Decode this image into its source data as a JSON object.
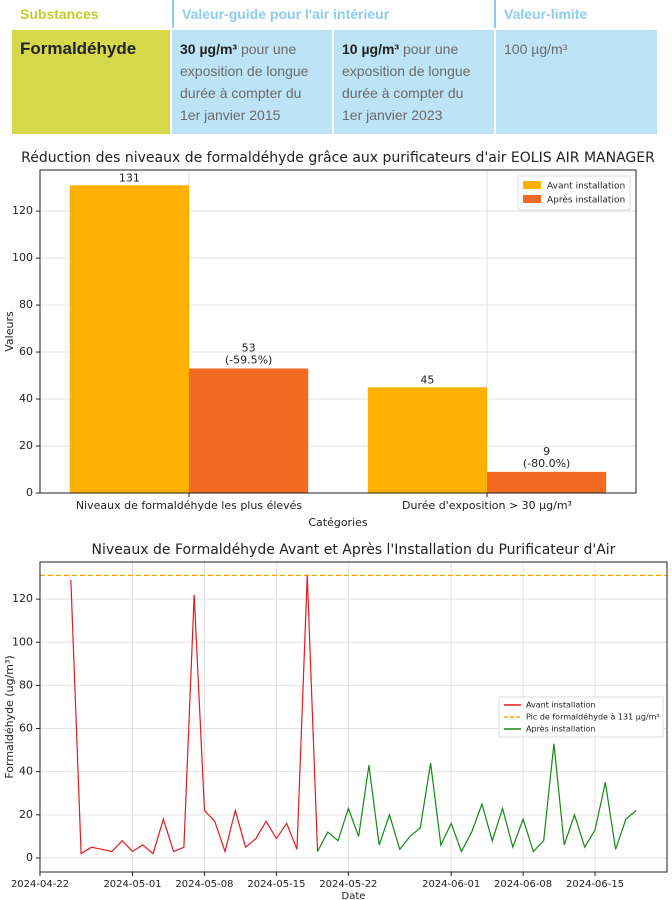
{
  "table": {
    "headers": [
      "Substances",
      "Valeur-guide pour l'air intérieur",
      "Valeur-limite"
    ],
    "row": {
      "substance": "Formaldéhyde",
      "guide": [
        {
          "bold": "30 µg/m³",
          "text": "pour une exposition de longue durée à compter du 1er janvier 2015"
        },
        {
          "bold": "10 µg/m³",
          "text": "pour une exposition de longue durée à compter du 1er janvier 2023"
        }
      ],
      "limit": "100 µg/m³"
    }
  },
  "chart_data": [
    {
      "type": "bar",
      "title": "Réduction des niveaux de formaldéhyde grâce aux purificateurs d'air EOLIS AIR MANAGER",
      "xlabel": "Catégories",
      "ylabel": "Valeurs",
      "categories": [
        "Niveaux de formaldéhyde les plus élevés",
        "Durée d'exposition > 30 µg/m³"
      ],
      "series": [
        {
          "name": "Avant installation",
          "color": "#ffb000",
          "values": [
            131,
            45
          ]
        },
        {
          "name": "Après installation",
          "color": "#f26b21",
          "values": [
            53,
            9
          ],
          "value_labels": [
            "53\n(-59.5%)",
            "9\n(-80.0%)"
          ]
        }
      ],
      "ylim": [
        0,
        137.5
      ],
      "yticks": [
        0,
        20,
        40,
        60,
        80,
        100,
        120
      ],
      "grid": true,
      "legend": "upper right"
    },
    {
      "type": "line",
      "title": "Niveaux de Formaldéhyde Avant et Après l'Installation du Purificateur d'Air",
      "xlabel": "Date",
      "ylabel": "Formaldéhyde (ug/m³)",
      "series": [
        {
          "name": "Avant installation",
          "color": "#e8181c",
          "x": [
            "2024-04-25",
            "2024-04-26",
            "2024-04-27",
            "2024-04-28",
            "2024-04-29",
            "2024-04-30",
            "2024-05-01",
            "2024-05-02",
            "2024-05-03",
            "2024-05-04",
            "2024-05-05",
            "2024-05-06",
            "2024-05-07",
            "2024-05-08",
            "2024-05-09",
            "2024-05-10",
            "2024-05-11",
            "2024-05-12",
            "2024-05-13",
            "2024-05-14",
            "2024-05-15",
            "2024-05-16",
            "2024-05-17",
            "2024-05-18",
            "2024-05-19"
          ],
          "values": [
            129,
            2,
            5,
            4,
            3,
            8,
            3,
            6,
            2,
            18,
            3,
            5,
            122,
            22,
            17,
            3,
            22,
            5,
            9,
            17,
            9,
            16,
            4,
            131,
            3
          ]
        },
        {
          "name": "Après installation",
          "color": "#118a11",
          "x": [
            "2024-05-19",
            "2024-05-20",
            "2024-05-21",
            "2024-05-22",
            "2024-05-23",
            "2024-05-24",
            "2024-05-25",
            "2024-05-26",
            "2024-05-27",
            "2024-05-28",
            "2024-05-29",
            "2024-05-30",
            "2024-05-31",
            "2024-06-01",
            "2024-06-02",
            "2024-06-03",
            "2024-06-04",
            "2024-06-05",
            "2024-06-06",
            "2024-06-07",
            "2024-06-08",
            "2024-06-09",
            "2024-06-10",
            "2024-06-11",
            "2024-06-12",
            "2024-06-13",
            "2024-06-14",
            "2024-06-15",
            "2024-06-16",
            "2024-06-17",
            "2024-06-18",
            "2024-06-19"
          ],
          "values": [
            3,
            12,
            8,
            23,
            10,
            43,
            6,
            20,
            4,
            10,
            14,
            44,
            6,
            16,
            3,
            12,
            25,
            8,
            23,
            5,
            18,
            3,
            8,
            53,
            6,
            20,
            5,
            13,
            35,
            4,
            18,
            22
          ]
        }
      ],
      "hline": {
        "name": "Pic de formaldéhyde à 131 µg/m³",
        "value": 131,
        "color": "#ffa500"
      },
      "xlim": [
        "2024-04-22",
        "2024-06-22"
      ],
      "xticks": [
        "2024-04-22",
        "2024-05-01",
        "2024-05-08",
        "2024-05-15",
        "2024-05-22",
        "2024-06-01",
        "2024-06-08",
        "2024-06-15"
      ],
      "ylim": [
        -6.5,
        137.2
      ],
      "yticks": [
        0,
        20,
        40,
        60,
        80,
        100,
        120
      ],
      "grid": true,
      "legend": "center right"
    }
  ]
}
